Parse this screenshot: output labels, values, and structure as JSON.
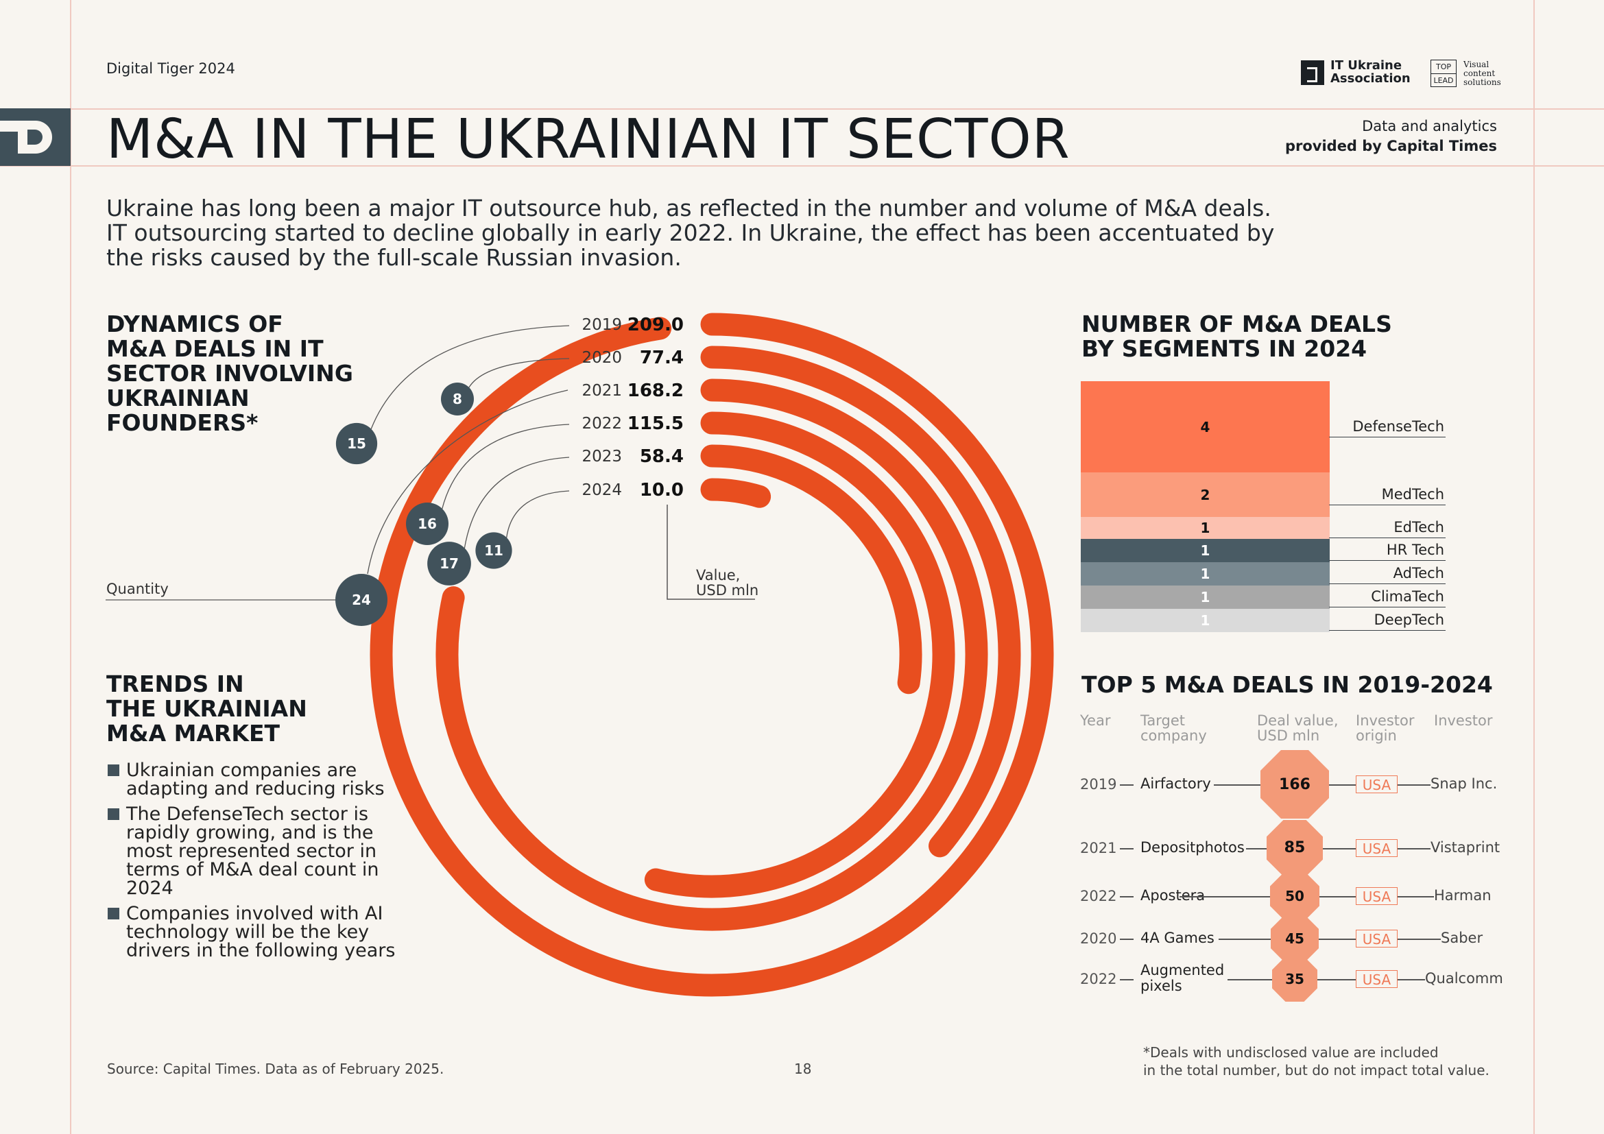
{
  "header": {
    "brand": "Digital Tiger 2024",
    "logo_line1": "IT Ukraine",
    "logo_line2": "Association",
    "toplead_line1": "TOP",
    "toplead_line2": "LEAD",
    "visual_line1": "Visual",
    "visual_line2": "content",
    "visual_line3": "solutions",
    "title": "M&A IN THE UKRAINIAN IT SECTOR",
    "credit_line1": "Data and analytics",
    "credit_line2": "provided by Capital Times"
  },
  "intro": {
    "line1": "Ukraine has long been a major IT outsource hub, as reflected in the number and volume of M&A deals.",
    "line2": "IT outsourcing started to decline globally in early 2022. In Ukraine, the effect has been accentuated by",
    "line3": "the risks caused by the full-scale Russian invasion."
  },
  "dynamics": {
    "heading_lines": [
      "DYNAMICS OF",
      "M&A DEALS IN IT",
      "SECTOR INVOLVING",
      "UKRAINIAN",
      "FOUNDERS*"
    ],
    "quantity_label": "Quantity",
    "value_label_line1": "Value,",
    "value_label_line2": "USD mln"
  },
  "trends": {
    "heading_lines": [
      "TRENDS IN",
      "THE UKRAINIAN",
      "M&A MARKET"
    ],
    "items": [
      "Ukrainian companies are adapting and reducing risks",
      "The DefenseTech sector is rapidly growing, and is the most represented sector in terms of M&A deal count in 2024",
      "Companies involved with AI technology will be the key drivers in the following years"
    ]
  },
  "segments": {
    "heading_lines": [
      "NUMBER OF M&A DEALS",
      "BY SEGMENTS IN 2024"
    ]
  },
  "top5": {
    "heading": "TOP 5 M&A DEALS IN 2019-2024",
    "col_year": "Year",
    "col_target_line1": "Target",
    "col_target_line2": "company",
    "col_value_line1": "Deal value,",
    "col_value_line2": "USD mln",
    "col_origin_line1": "Investor",
    "col_origin_line2": "origin",
    "col_investor": "Investor",
    "deals": [
      {
        "year": "2019",
        "company": "Airfactory",
        "company2": "",
        "value": "166",
        "origin": "USA",
        "investor": "Snap Inc."
      },
      {
        "year": "2021",
        "company": "Depositphotos",
        "company2": "",
        "value": "85",
        "origin": "USA",
        "investor": "Vistaprint"
      },
      {
        "year": "2022",
        "company": "Apostera",
        "company2": "",
        "value": "50",
        "origin": "USA",
        "investor": "Harman"
      },
      {
        "year": "2020",
        "company": "4A Games",
        "company2": "",
        "value": "45",
        "origin": "USA",
        "investor": "Saber"
      },
      {
        "year": "2022",
        "company": "Augmented",
        "company2": "pixels",
        "value": "35",
        "origin": "USA",
        "investor": "Qualcomm"
      }
    ]
  },
  "footer": {
    "source": "Source: Capital Times. Data as of February 2025.",
    "page": "18",
    "footnote_line1": "*Deals with undisclosed value are included",
    "footnote_line2": "in the total number, but do not impact total value."
  },
  "colors": {
    "accent": "#e84e1f",
    "bubble": "#41525b",
    "background": "#f8f5f0"
  },
  "chart_data": [
    {
      "type": "radial-bar",
      "title": "DYNAMICS OF M&A DEALS IN IT SECTOR INVOLVING UKRAINIAN FOUNDERS*",
      "categories": [
        "2019",
        "2020",
        "2021",
        "2022",
        "2023",
        "2024"
      ],
      "series": [
        {
          "name": "Value, USD mln",
          "values": [
            209.0,
            77.4,
            168.2,
            115.5,
            58.4,
            10.0
          ]
        },
        {
          "name": "Quantity",
          "values": [
            15,
            8,
            24,
            16,
            17,
            11
          ]
        }
      ]
    },
    {
      "type": "stacked-bar",
      "title": "NUMBER OF M&A DEALS BY SEGMENTS IN 2024",
      "categories": [
        "DefenseTech",
        "MedTech",
        "EdTech",
        "HR Tech",
        "AdTech",
        "ClimaTech",
        "DeepTech"
      ],
      "values": [
        4,
        2,
        1,
        1,
        1,
        1,
        1
      ],
      "colors": [
        "#fd7650",
        "#fb9c7c",
        "#fcc1b0",
        "#495b64",
        "#788890",
        "#a8a8a8",
        "#dadada"
      ],
      "label_colors": [
        "#111111",
        "#111111",
        "#111111",
        "#ffffff",
        "#ffffff",
        "#ffffff",
        "#ffffff"
      ]
    },
    {
      "type": "table",
      "title": "TOP 5 M&A DEALS IN 2019-2024",
      "categories": [
        "Airfactory",
        "Depositphotos",
        "Apostera",
        "4A Games",
        "Augmented pixels"
      ],
      "values": [
        166,
        85,
        50,
        45,
        35
      ]
    }
  ]
}
